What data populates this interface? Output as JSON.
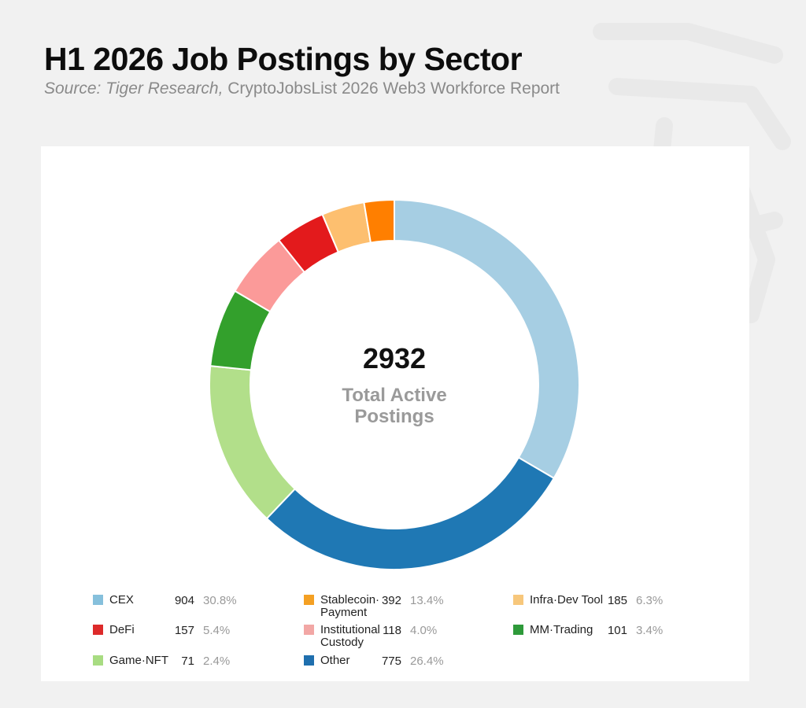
{
  "header": {
    "title": "H1 2026 Job Postings by Sector",
    "source_italic": "Source: Tiger Research,",
    "source_rest": " CryptoJobsList 2026 Web3 Workforce Report"
  },
  "center": {
    "total": "2932",
    "label_line1": "Total Active",
    "label_line2": "Postings"
  },
  "chart_data": {
    "type": "pie",
    "title": "H1 2026 Job Postings by Sector",
    "total": 2932,
    "slices": [
      {
        "label": "CEX",
        "value": 904,
        "percent": "30.8%",
        "color": "#a6cee3"
      },
      {
        "label": "Other",
        "value": 775,
        "percent": "26.4%",
        "color": "#1f78b4"
      },
      {
        "label": "Stablecoin·Payment",
        "value": 392,
        "percent": "13.4%",
        "color": "#b2df8a"
      },
      {
        "label": "Infra·Dev Tool",
        "value": 185,
        "percent": "6.3%",
        "color": "#33a02c"
      },
      {
        "label": "DeFi",
        "value": 157,
        "percent": "5.4%",
        "color": "#fb9a99"
      },
      {
        "label": "Institutional Custody",
        "value": 118,
        "percent": "4.0%",
        "color": "#e31a1c"
      },
      {
        "label": "MM·Trading",
        "value": 101,
        "percent": "3.4%",
        "color": "#fdbf6f"
      },
      {
        "label": "Game·NFT",
        "value": 71,
        "percent": "2.4%",
        "color": "#ff7f00"
      }
    ]
  },
  "legend": [
    {
      "label": "CEX",
      "count": "904",
      "percent": "30.8%",
      "color": "#86c0dc"
    },
    {
      "label": "Stablecoin· Payment",
      "count": "392",
      "percent": "13.4%",
      "color": "#f4a023"
    },
    {
      "label": "Infra·Dev Tool",
      "count": "185",
      "percent": "6.3%",
      "color": "#f7c77b"
    },
    {
      "label": "DeFi",
      "count": "157",
      "percent": "5.4%",
      "color": "#dd2a2a"
    },
    {
      "label": "Institutional Custody",
      "count": "118",
      "percent": "4.0%",
      "color": "#f2a7a5"
    },
    {
      "label": "MM·Trading",
      "count": "101",
      "percent": "3.4%",
      "color": "#2e9a3a"
    },
    {
      "label": "Game·NFT",
      "count": "71",
      "percent": "2.4%",
      "color": "#a8dc82"
    },
    {
      "label": "Other",
      "count": "775",
      "percent": "26.4%",
      "color": "#1f6fae"
    }
  ]
}
